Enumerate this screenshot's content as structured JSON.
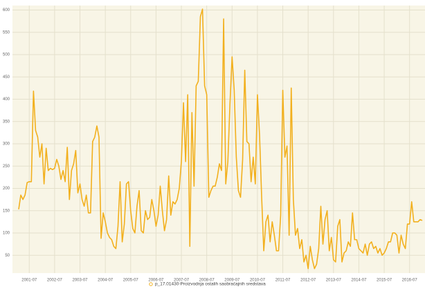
{
  "chart_data": {
    "type": "line",
    "categories": [
      null,
      null,
      null,
      null,
      null,
      "2001-07",
      null,
      null,
      null,
      null,
      null,
      null,
      null,
      null,
      null,
      null,
      null,
      "2002-07",
      null,
      null,
      null,
      null,
      null,
      null,
      null,
      null,
      null,
      null,
      null,
      "2003-07",
      null,
      null,
      null,
      null,
      null,
      null,
      null,
      null,
      null,
      null,
      null,
      "2004-07",
      null,
      null,
      null,
      null,
      null,
      null,
      null,
      null,
      null,
      null,
      null,
      "2005-07",
      null,
      null,
      null,
      null,
      null,
      null,
      null,
      null,
      null,
      null,
      null,
      "2006-07",
      null,
      null,
      null,
      null,
      null,
      null,
      null,
      null,
      null,
      null,
      null,
      "2007-07",
      null,
      null,
      null,
      null,
      null,
      null,
      null,
      null,
      null,
      null,
      null,
      "2008-07",
      null,
      null,
      null,
      null,
      null,
      null,
      null,
      null,
      null,
      null,
      null,
      "2009-07",
      null,
      null,
      null,
      null,
      null,
      null,
      null,
      null,
      null,
      null,
      null,
      "2010-07",
      null,
      null,
      null,
      null,
      null,
      null,
      null,
      null,
      null,
      null,
      null,
      "2011-07",
      null,
      null,
      null,
      null,
      null,
      null,
      null,
      null,
      null,
      null,
      null,
      "2012-07",
      null,
      null,
      null,
      null,
      null,
      null,
      null,
      null,
      null,
      null,
      null,
      "2013-07",
      null,
      null,
      null,
      null,
      null,
      null,
      null,
      null,
      null,
      null,
      null,
      "2014-07",
      null,
      null,
      null,
      null,
      null,
      null,
      null,
      null,
      null,
      null,
      null,
      "2015-07",
      null,
      null,
      null,
      null,
      null,
      null,
      null,
      null,
      null,
      null,
      null,
      "2016-07",
      null,
      null,
      null,
      null,
      null,
      null
    ],
    "series": [
      {
        "name": "p_17.01430-Proizvodnja ostalih saobraćajnih sredstava",
        "color": "#f2b01e",
        "values": [
          153,
          185,
          175,
          185,
          213,
          215,
          215,
          418,
          330,
          315,
          270,
          300,
          210,
          290,
          240,
          245,
          242,
          245,
          265,
          250,
          220,
          240,
          215,
          292,
          175,
          240,
          255,
          285,
          190,
          210,
          175,
          160,
          185,
          145,
          145,
          305,
          315,
          340,
          315,
          88,
          145,
          125,
          100,
          90,
          85,
          70,
          65,
          115,
          215,
          80,
          120,
          210,
          215,
          150,
          110,
          100,
          160,
          195,
          105,
          100,
          150,
          130,
          135,
          175,
          150,
          115,
          140,
          205,
          150,
          105,
          130,
          228,
          140,
          170,
          165,
          175,
          200,
          260,
          392,
          260,
          410,
          70,
          370,
          205,
          430,
          440,
          585,
          602,
          430,
          410,
          180,
          195,
          205,
          205,
          225,
          255,
          240,
          580,
          210,
          260,
          390,
          495,
          420,
          270,
          195,
          180,
          265,
          465,
          305,
          300,
          215,
          270,
          210,
          410,
          320,
          180,
          60,
          125,
          140,
          80,
          125,
          95,
          60,
          60,
          140,
          420,
          270,
          295,
          95,
          425,
          175,
          95,
          110,
          65,
          85,
          35,
          50,
          20,
          70,
          40,
          20,
          30,
          65,
          160,
          75,
          130,
          150,
          60,
          90,
          40,
          35,
          115,
          130,
          35,
          55,
          60,
          80,
          70,
          145,
          85,
          85,
          65,
          60,
          55,
          75,
          50,
          75,
          80,
          65,
          70,
          55,
          65,
          50,
          55,
          65,
          80,
          80,
          100,
          100,
          95,
          55,
          95,
          75,
          65,
          120,
          120,
          170,
          125,
          125,
          125,
          130,
          128
        ]
      }
    ],
    "ylim": [
      10,
      610
    ],
    "yticks": [
      50,
      100,
      150,
      200,
      250,
      300,
      350,
      400,
      450,
      500,
      550,
      600
    ],
    "grid": true
  }
}
